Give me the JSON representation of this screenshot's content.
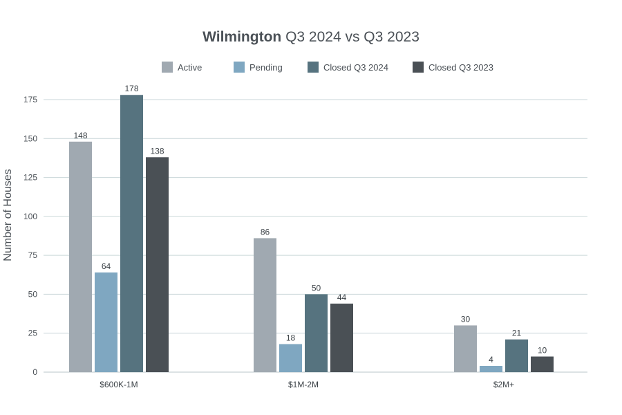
{
  "chart_data": {
    "type": "bar",
    "title_bold": "Wilmington",
    "title_rest": " Q3 2024 vs Q3 2023",
    "xlabel": "",
    "ylabel": "Number of Houses",
    "ylim": [
      0,
      175
    ],
    "yticks": [
      0,
      25,
      50,
      75,
      100,
      125,
      150,
      175
    ],
    "categories": [
      "$600K-1M",
      "$1M-2M",
      "$2M+"
    ],
    "series": [
      {
        "name": "Active",
        "color": "#a0a9b1",
        "values": [
          148,
          86,
          30
        ]
      },
      {
        "name": "Pending",
        "color": "#7fa7c1",
        "values": [
          64,
          18,
          4
        ]
      },
      {
        "name": "Closed Q3 2024",
        "color": "#56737f",
        "values": [
          178,
          50,
          21
        ]
      },
      {
        "name": "Closed Q3 2023",
        "color": "#4a5055",
        "values": [
          138,
          44,
          10
        ]
      }
    ],
    "grid": true,
    "legend_position": "top"
  }
}
